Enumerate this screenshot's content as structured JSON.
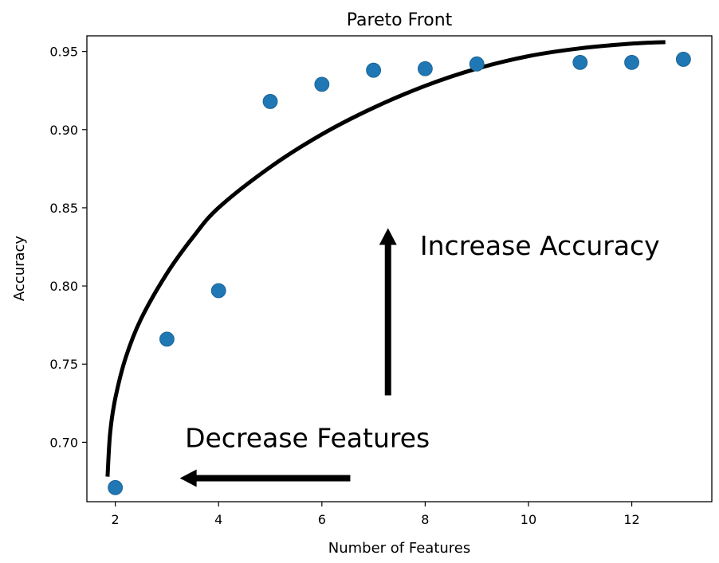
{
  "chart_data": {
    "type": "scatter",
    "title": "Pareto Front",
    "xlabel": "Number of Features",
    "ylabel": "Accuracy",
    "xlim": [
      1.45,
      13.55
    ],
    "ylim": [
      0.662,
      0.96
    ],
    "xticks": [
      2,
      4,
      6,
      8,
      10,
      12
    ],
    "xtick_labels": [
      "2",
      "4",
      "6",
      "8",
      "10",
      "12"
    ],
    "yticks": [
      0.7,
      0.75,
      0.8,
      0.85,
      0.9,
      0.95
    ],
    "ytick_labels": [
      "0.70",
      "0.75",
      "0.80",
      "0.85",
      "0.90",
      "0.95"
    ],
    "grid": false,
    "marker_color": "#1f77b4",
    "series": [
      {
        "x": [
          2,
          3,
          4,
          5,
          6,
          7,
          8,
          9,
          11,
          12,
          13
        ],
        "y": [
          0.671,
          0.766,
          0.797,
          0.918,
          0.929,
          0.938,
          0.939,
          0.942,
          0.943,
          0.943,
          0.945
        ]
      }
    ],
    "front_curve": {
      "color": "#000000",
      "x": [
        1.85,
        1.9,
        2.0,
        2.2,
        2.5,
        3.0,
        3.5,
        4.0,
        5.0,
        6.0,
        7.0,
        8.0,
        9.0,
        10.0,
        11.0,
        12.0,
        12.65
      ],
      "y": [
        0.678,
        0.706,
        0.728,
        0.754,
        0.779,
        0.808,
        0.831,
        0.85,
        0.876,
        0.897,
        0.914,
        0.928,
        0.939,
        0.947,
        0.952,
        0.955,
        0.956
      ]
    },
    "annotations": [
      {
        "text": "Increase Accuracy",
        "x": 7.9,
        "y": 0.82
      },
      {
        "text": "Decrease Features",
        "x": 3.35,
        "y": 0.697
      }
    ],
    "arrows": [
      {
        "direction": "up",
        "from": [
          7.28,
          0.73
        ],
        "to": [
          7.28,
          0.837
        ]
      },
      {
        "direction": "left",
        "from": [
          6.55,
          0.677
        ],
        "to": [
          3.25,
          0.677
        ]
      }
    ]
  }
}
